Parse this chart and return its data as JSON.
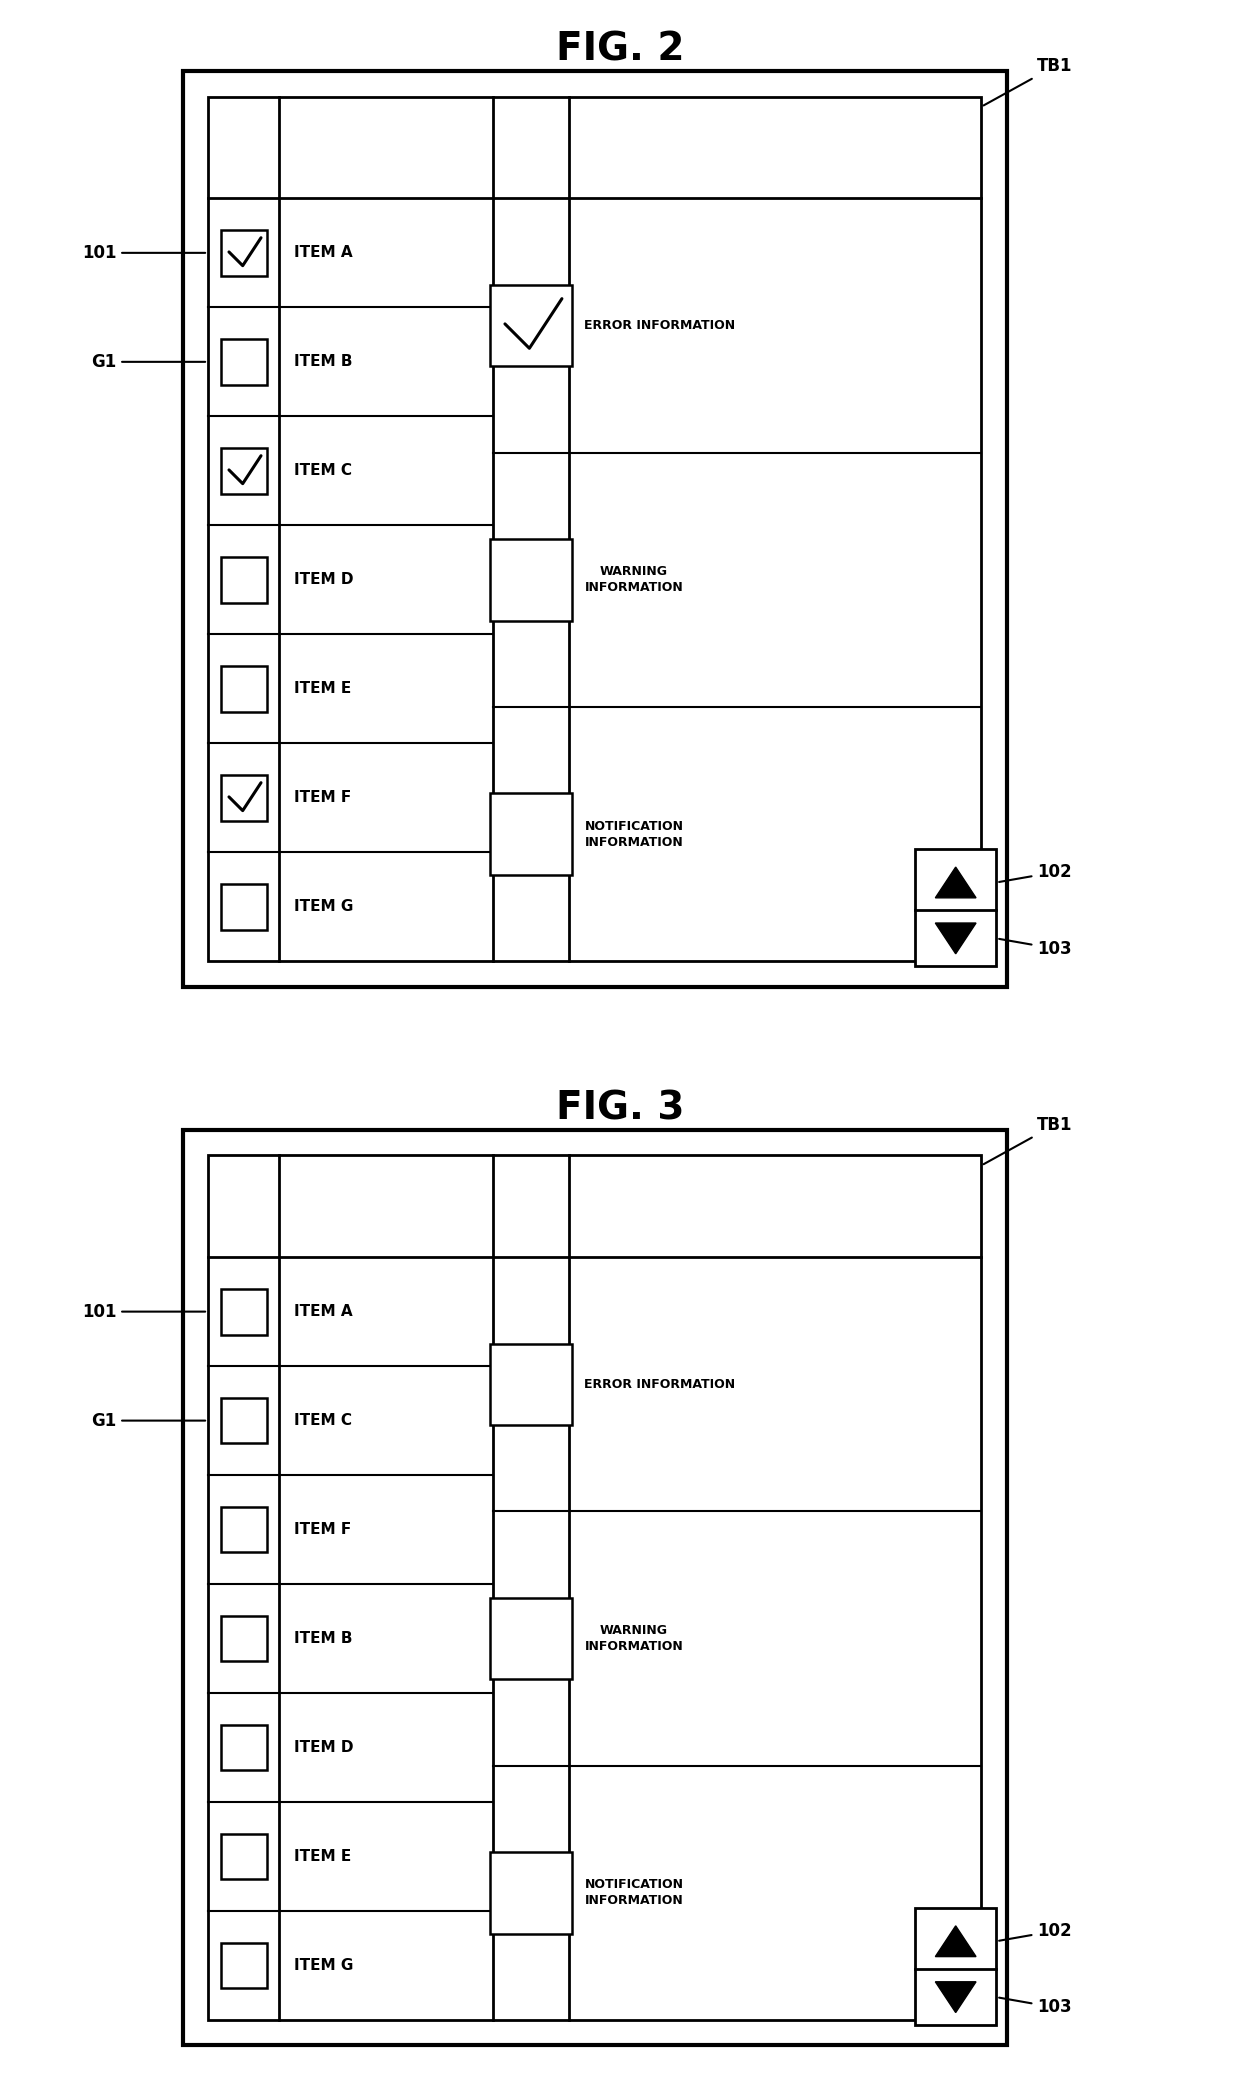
{
  "fig2_title": "FIG. 2",
  "fig3_title": "FIG. 3",
  "fig2_items": [
    "ITEM A",
    "ITEM B",
    "ITEM C",
    "ITEM D",
    "ITEM E",
    "ITEM F",
    "ITEM G"
  ],
  "fig2_checked": [
    true,
    false,
    true,
    false,
    false,
    true,
    false
  ],
  "fig3_items": [
    "ITEM A",
    "ITEM C",
    "ITEM F",
    "ITEM B",
    "ITEM D",
    "ITEM E",
    "ITEM G"
  ],
  "fig3_checked": [
    false,
    false,
    false,
    false,
    false,
    false,
    false
  ],
  "info_items_fig2": [
    "ERROR INFORMATION",
    "WARNING\nINFORMATION",
    "NOTIFICATION\nINFORMATION"
  ],
  "info_checked_fig2": [
    true,
    false,
    false
  ],
  "info_items_fig3": [
    "ERROR INFORMATION",
    "WARNING\nINFORMATION",
    "NOTIFICATION\nINFORMATION"
  ],
  "info_checked_fig3": [
    false,
    false,
    false
  ],
  "label_101": "101",
  "label_G1": "G1",
  "label_102": "102",
  "label_103": "103",
  "label_TB1": "TB1",
  "bg_color": "#ffffff",
  "line_color": "#000000",
  "text_color": "#000000"
}
